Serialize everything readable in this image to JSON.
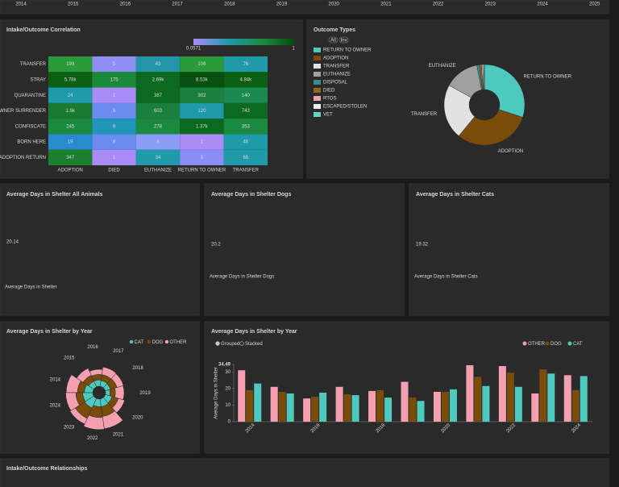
{
  "timeline": {
    "years": [
      2014,
      2015,
      2016,
      2017,
      2018,
      2019,
      2020,
      2021,
      2022,
      2023,
      2024,
      2025
    ]
  },
  "chart_data": [
    {
      "type": "heatmap",
      "title": "Intake/Outcome Correlation",
      "colorbar": {
        "min": 0.0571,
        "max": 1
      },
      "rows": [
        "TRANSFER",
        "STRAY",
        "QUARANTINE",
        "OWNER SURRENDER",
        "CONFISCATE",
        "BORN HERE",
        "ADOPTION RETURN"
      ],
      "columns": [
        "ADOPTION",
        "DIED",
        "EUTHANIZE",
        "RETURN TO OWNER",
        "TRANSFER"
      ],
      "values": [
        [
          199,
          5,
          43,
          106,
          76
        ],
        [
          5780,
          175,
          2690,
          8530,
          4840
        ],
        [
          24,
          1,
          387,
          302,
          140
        ],
        [
          1900,
          8,
          603,
          120,
          743
        ],
        [
          245,
          9,
          278,
          1370,
          353
        ],
        [
          19,
          8,
          8,
          1,
          46
        ],
        [
          347,
          1,
          34,
          5,
          65
        ]
      ],
      "value_labels": [
        [
          "199",
          "5",
          "43",
          "106",
          "76"
        ],
        [
          "5.78k",
          "175",
          "2.69k",
          "8.53k",
          "4.84k"
        ],
        [
          "24",
          "1",
          "387",
          "302",
          "140"
        ],
        [
          "1.9k",
          "8",
          "603",
          "120",
          "743"
        ],
        [
          "245",
          "9",
          "278",
          "1.37k",
          "353"
        ],
        [
          "19",
          "8",
          "8",
          "1",
          "46"
        ],
        [
          "347",
          "1",
          "34",
          "5",
          "65"
        ]
      ],
      "colors": [
        [
          "#2a9a3a",
          "#8f8ff5",
          "#2296a8",
          "#2a9a3a",
          "#1e9aa8"
        ],
        [
          "#0b5e12",
          "#1a8a3a",
          "#0b6a20",
          "#075010",
          "#0b5e12"
        ],
        [
          "#1e9aa8",
          "#a98cf8",
          "#0b6a20",
          "#1a8040",
          "#1a8a50"
        ],
        [
          "#1a7a30",
          "#6a8cf0",
          "#1a8040",
          "#1e9aa8",
          "#0b6a20"
        ],
        [
          "#1a8a40",
          "#2296b8",
          "#1a8a40",
          "#0b6a20",
          "#1a8a40"
        ],
        [
          "#2a8ad0",
          "#6a8cf0",
          "#8a9cf8",
          "#a98cf8",
          "#1e9aa8"
        ],
        [
          "#1a8030",
          "#a98cf8",
          "#1e9aa8",
          "#8a8cf8",
          "#1e9aa8"
        ]
      ]
    },
    {
      "type": "donut",
      "title": "Outcome Types",
      "buttons": [
        "All",
        "Inv"
      ],
      "categories": [
        "RETURN TO OWNER",
        "ADOPTION",
        "TRANSFER",
        "EUTHANIZE",
        "DISPOSAL",
        "DIED",
        "RTOS",
        "ESCAPED/STOLEN",
        "VET"
      ],
      "values": [
        30,
        31,
        22,
        14,
        1,
        0.8,
        0.5,
        0.4,
        0.3
      ],
      "colors": [
        "#4ec9be",
        "#7a4c0a",
        "#e2e2e2",
        "#a0a0a0",
        "#3a8a8a",
        "#8a6a20",
        "#f4a0b0",
        "#f0f0f0",
        "#5fd4c4"
      ]
    },
    {
      "type": "radial_bar",
      "title": "Average Days in Shelter by Year",
      "categories": [
        "2016",
        "2017",
        "2018",
        "2019",
        "2020",
        "2021",
        "2022",
        "2023",
        "2024",
        "2014",
        "2015"
      ],
      "series": [
        {
          "name": "CAT",
          "color": "#4ec9be",
          "values": [
            17.5,
            16,
            14.5,
            12.5,
            19.5,
            21.5,
            21,
            29,
            27.5,
            23,
            17
          ]
        },
        {
          "name": "DOG",
          "color": "#7a4c0a",
          "values": [
            15,
            16.5,
            19,
            14.5,
            18,
            27,
            29.5,
            31.5,
            19,
            19,
            18
          ]
        },
        {
          "name": "OTHER",
          "color": "#f4a0b0",
          "values": [
            14,
            21,
            18.5,
            24,
            18,
            34,
            33.5,
            17,
            28,
            31,
            21
          ]
        }
      ]
    },
    {
      "type": "bar",
      "title": "Average Days in Shelter by Year",
      "modes": [
        "Grouped",
        "Stacked"
      ],
      "y_label": "Average Days in Shelter",
      "categories": [
        "2014",
        null,
        "2016",
        null,
        "2018",
        null,
        "2020",
        null,
        "2022",
        null,
        "2024"
      ],
      "series": [
        {
          "name": "OTHER",
          "color": "#f4a0b0",
          "values": [
            31,
            21,
            14,
            21,
            18.5,
            24,
            18,
            34,
            33.5,
            17,
            28
          ]
        },
        {
          "name": "DOG",
          "color": "#7a4c0a",
          "values": [
            19,
            18,
            15,
            16.5,
            19,
            14.5,
            18,
            27,
            29.5,
            31.5,
            19
          ]
        },
        {
          "name": "CAT",
          "color": "#4ec9be",
          "values": [
            23,
            17,
            17.5,
            16,
            14.5,
            12.5,
            19.5,
            21.5,
            21,
            29,
            27.5
          ]
        }
      ],
      "ylim": [
        0,
        34.49
      ],
      "yticks": [
        0,
        10,
        20,
        30,
        34.49
      ]
    }
  ],
  "kpis": [
    {
      "title": "Average Days in Shelter All Animals",
      "value": 20.14,
      "subtitle": "Average Days in Shelter"
    },
    {
      "title": "Average Days in Shelter Dogs",
      "value": 20.2,
      "subtitle": "Average Days in Shelter Dogs"
    },
    {
      "title": "Average Days in Shelter Cats",
      "value": 19.32,
      "subtitle": "Average Days in Shelter Cats"
    }
  ],
  "bottom": {
    "title": "Intake/Outcome Relationships"
  }
}
